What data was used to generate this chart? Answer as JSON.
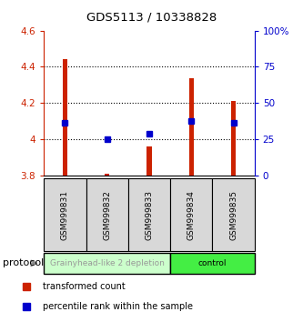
{
  "title": "GDS5113 / 10338828",
  "samples": [
    "GSM999831",
    "GSM999832",
    "GSM999833",
    "GSM999834",
    "GSM999835"
  ],
  "bar_bottoms": [
    3.8,
    3.8,
    3.8,
    3.8,
    3.8
  ],
  "bar_tops": [
    4.44,
    3.81,
    3.96,
    4.335,
    4.21
  ],
  "percentile_values": [
    4.09,
    4.0,
    4.03,
    4.1,
    4.09
  ],
  "ylim_left": [
    3.8,
    4.6
  ],
  "ylim_right": [
    0,
    100
  ],
  "yticks_left": [
    3.8,
    4.0,
    4.2,
    4.4,
    4.6
  ],
  "ytick_labels_left": [
    "3.8",
    "4",
    "4.2",
    "4.4",
    "4.6"
  ],
  "yticks_right": [
    0,
    25,
    50,
    75,
    100
  ],
  "ytick_labels_right": [
    "0",
    "25",
    "50",
    "75",
    "100%"
  ],
  "grid_values": [
    4.0,
    4.2,
    4.4
  ],
  "groups": [
    {
      "label": "Grainyhead-like 2 depletion",
      "indices": [
        0,
        1,
        2
      ],
      "color": "#ccffcc",
      "text_color": "#999999"
    },
    {
      "label": "control",
      "indices": [
        3,
        4
      ],
      "color": "#44ee44",
      "text_color": "#000000"
    }
  ],
  "bar_color": "#cc2200",
  "marker_color": "#0000cc",
  "protocol_label": "protocol",
  "legend_items": [
    {
      "color": "#cc2200",
      "label": "transformed count"
    },
    {
      "color": "#0000cc",
      "label": "percentile rank within the sample"
    }
  ],
  "bg_color": "#ffffff",
  "left_axis_color": "#cc2200",
  "right_axis_color": "#0000cc",
  "bar_width": 0.12
}
